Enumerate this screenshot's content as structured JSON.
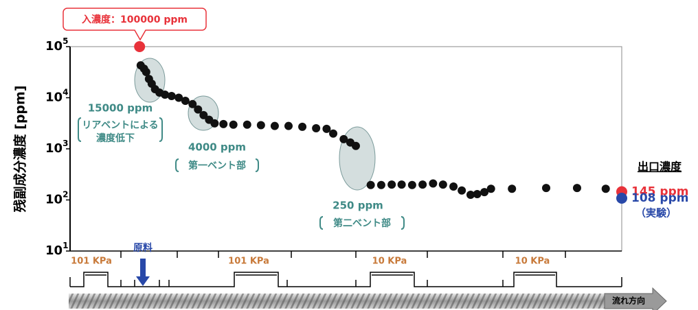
{
  "chart_data": {
    "type": "scatter",
    "ylabel": "残副成分濃度 [ppm]",
    "log_y": true,
    "ylim": [
      10,
      100000
    ],
    "yticks": [
      {
        "value": 10,
        "label": "10",
        "exponent": "1"
      },
      {
        "value": 100,
        "label": "10",
        "exponent": "2"
      },
      {
        "value": 1000,
        "label": "10",
        "exponent": "3"
      },
      {
        "value": 10000,
        "label": "10",
        "exponent": "4"
      },
      {
        "value": 100000,
        "label": "10",
        "exponent": "5"
      }
    ],
    "xlim": [
      0,
      100
    ],
    "series": [
      {
        "color": "#111111",
        "x": [
          12.8,
          13.4,
          13.8,
          14.3,
          14.8,
          15.4,
          16.2,
          17.2,
          18.4,
          19.7,
          20.9,
          22.2,
          23.2,
          24.2,
          25.2,
          26.2,
          27.8,
          29.6,
          32.1,
          34.6,
          37.1,
          39.6,
          42.1,
          44.6,
          46.5,
          47.7,
          49.6,
          50.8,
          51.8,
          54.5,
          56.4,
          58.3,
          60.1,
          62.0,
          63.9,
          65.8,
          67.6,
          69.5,
          71.0,
          72.6,
          73.8,
          75.1,
          76.3,
          80.1,
          86.3,
          91.9,
          97.1
        ],
        "values": [
          43000,
          37000,
          31900,
          23300,
          18800,
          14700,
          12600,
          11500,
          10800,
          10000,
          8700,
          7500,
          5900,
          4560,
          3700,
          3150,
          3050,
          2970,
          2970,
          2900,
          2800,
          2800,
          2700,
          2530,
          2460,
          1990,
          1550,
          1330,
          1140,
          196,
          196,
          200,
          200,
          196,
          200,
          210,
          200,
          183,
          153,
          126,
          130,
          142,
          165,
          165,
          171,
          171,
          165
        ]
      }
    ],
    "inlet": {
      "x": 12.6,
      "value": 100000,
      "color": "#e8323a",
      "label": "入濃度：100000 ppm"
    },
    "outlet_title": "出口濃度",
    "outlet": [
      {
        "x": 100,
        "value": 145,
        "color": "#e8323a",
        "label": "145 ppm"
      },
      {
        "x": 100,
        "value": 108,
        "color": "#2848a8",
        "label": "108 ppm",
        "note": "（実験）"
      }
    ],
    "annotations": [
      {
        "lines": [
          "15000 ppm",
          "リアベントによる",
          "濃度低下"
        ]
      },
      {
        "lines": [
          "4000 ppm",
          "第一ベント部"
        ]
      },
      {
        "lines": [
          "250 ppm",
          "第二ベント部"
        ]
      }
    ],
    "pressure_labels": [
      "101 KPa",
      "101 KPa",
      "10 KPa",
      "10 KPa"
    ],
    "feed_label": "原料",
    "flow_label": "流れ方向"
  }
}
